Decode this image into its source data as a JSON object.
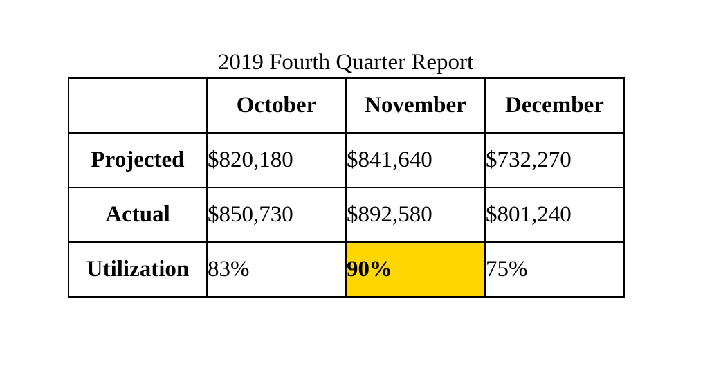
{
  "title": "2019 Fourth Quarter Report",
  "columns": [
    "",
    "October",
    "November",
    "December"
  ],
  "rows": [
    {
      "label": "Projected",
      "values": [
        "$820,180",
        "$841,640",
        "$732,270"
      ]
    },
    {
      "label": "Actual",
      "values": [
        "$850,730",
        "$892,580",
        "$801,240"
      ]
    },
    {
      "label": "Utilization",
      "values": [
        "83%",
        "90%",
        "75%"
      ]
    }
  ],
  "highlight": {
    "row": 2,
    "col": 1,
    "color": "#FFD700"
  }
}
